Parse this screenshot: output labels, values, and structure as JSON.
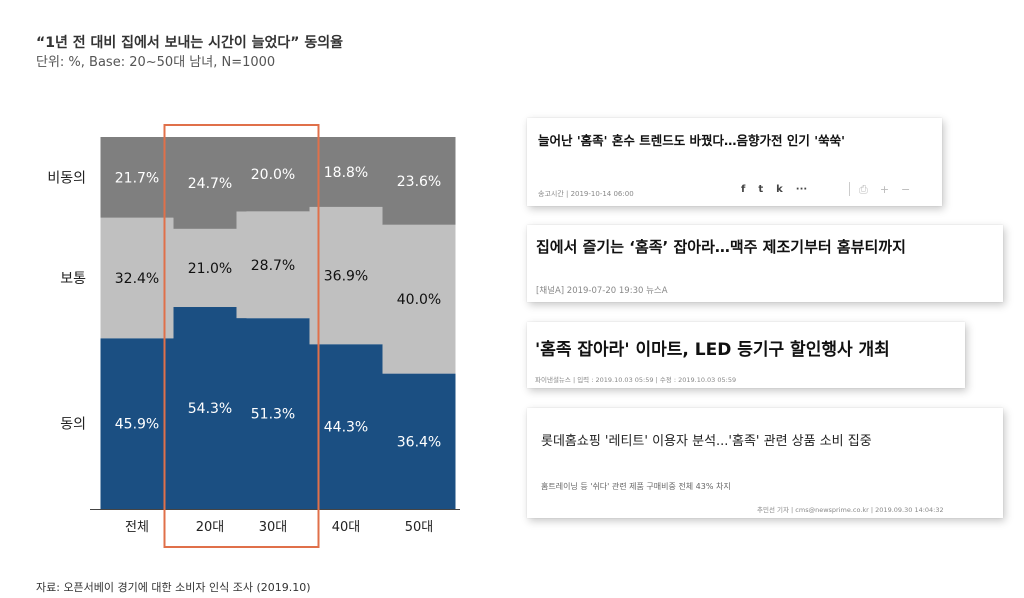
{
  "header": {
    "title": "“1년 전 대비 집에서 보내는 시간이 늘었다” 동의율",
    "subtitle": "단위: %, Base: 20~50대 남녀, N=1000"
  },
  "source": "자료: 오픈서베이 경기에 대한 소비자 인식 조사 (2019.10)",
  "colors": {
    "agree": "#1b4f82",
    "neutral": "#c0c0c0",
    "disagree": "#7f7f7f",
    "highlight": "#e0704a"
  },
  "chart_data": {
    "type": "bar",
    "stacked": true,
    "categories": [
      "전체",
      "20대",
      "30대",
      "40대",
      "50대"
    ],
    "series": [
      {
        "name": "동의",
        "values": [
          45.9,
          54.3,
          51.3,
          44.3,
          36.4
        ],
        "labels": [
          "45.9%",
          "54.3%",
          "51.3%",
          "44.3%",
          "36.4%"
        ]
      },
      {
        "name": "보통",
        "values": [
          32.4,
          21.0,
          28.7,
          36.9,
          40.0
        ],
        "labels": [
          "32.4%",
          "21.0%",
          "28.7%",
          "36.9%",
          "40.0%"
        ]
      },
      {
        "name": "비동의",
        "values": [
          21.7,
          24.7,
          20.0,
          18.8,
          23.6
        ],
        "labels": [
          "21.7%",
          "24.7%",
          "20.0%",
          "18.8%",
          "23.6%"
        ]
      }
    ],
    "ylim": [
      0,
      100
    ],
    "highlighted_categories": [
      "20대",
      "30대"
    ]
  },
  "articles": [
    {
      "headline": "늘어난 '홈족' 혼수 트렌드도 바꿨다…음향가전 인기 '쑥쑥'",
      "meta": "송고시간 | 2019-10-14 06:00",
      "share_icons": [
        "f",
        "t",
        "k",
        "···"
      ],
      "tool_icons": [
        "⎙",
        "+",
        "−"
      ]
    },
    {
      "headline": "집에서 즐기는 ‘홈족’ 잡아라…맥주 제조기부터 홈뷰티까지",
      "meta": "[채널A] 2019-07-20 19:30   뉴스A"
    },
    {
      "headline": "'홈족 잡아라' 이마트, LED 등기구 할인행사 개최",
      "meta": "파이낸셜뉴스 | 입력 : 2019.10.03 05:59  |  수정 : 2019.10.03 05:59"
    },
    {
      "headline": "롯데홈쇼핑 '레티트' 이용자 분석...'홈족' 관련 상품 소비 집중",
      "subline": "홈트레이닝 등 '쉬다' 관련 제품 구매비중 전체 43% 차지",
      "meta": "추민선 기자   |  cms@newsprime.co.kr | 2019.09.30 14:04:32"
    }
  ]
}
